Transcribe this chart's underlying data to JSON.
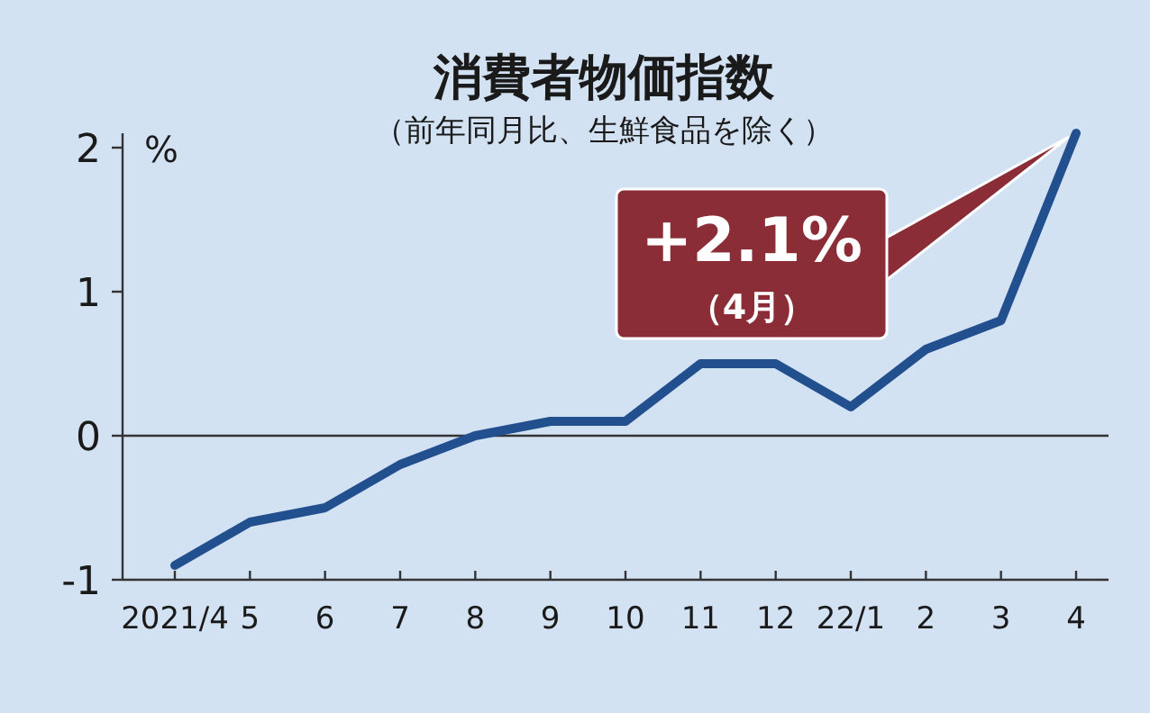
{
  "chart_data": {
    "type": "line",
    "title": "消費者物価指数",
    "subtitle": "（前年同月比、生鮮食品を除く）",
    "ylabel": "%",
    "categories": [
      "2021/4",
      "5",
      "6",
      "7",
      "8",
      "9",
      "10",
      "11",
      "12",
      "22/1",
      "2",
      "3",
      "4"
    ],
    "series": [
      {
        "color": "#22508f",
        "values": [
          -0.9,
          -0.6,
          -0.5,
          -0.2,
          0.0,
          0.1,
          0.1,
          0.5,
          0.5,
          0.2,
          0.6,
          0.8,
          2.1
        ]
      }
    ],
    "ylim": [
      -1,
      2.1
    ],
    "yticks": [
      -1,
      0,
      1,
      2
    ],
    "ref_lines": [
      {
        "axis": "y",
        "value": 0
      }
    ],
    "annotations": [
      "+2.1%",
      "（4月）"
    ],
    "marker": "none",
    "line_style": "solid"
  }
}
